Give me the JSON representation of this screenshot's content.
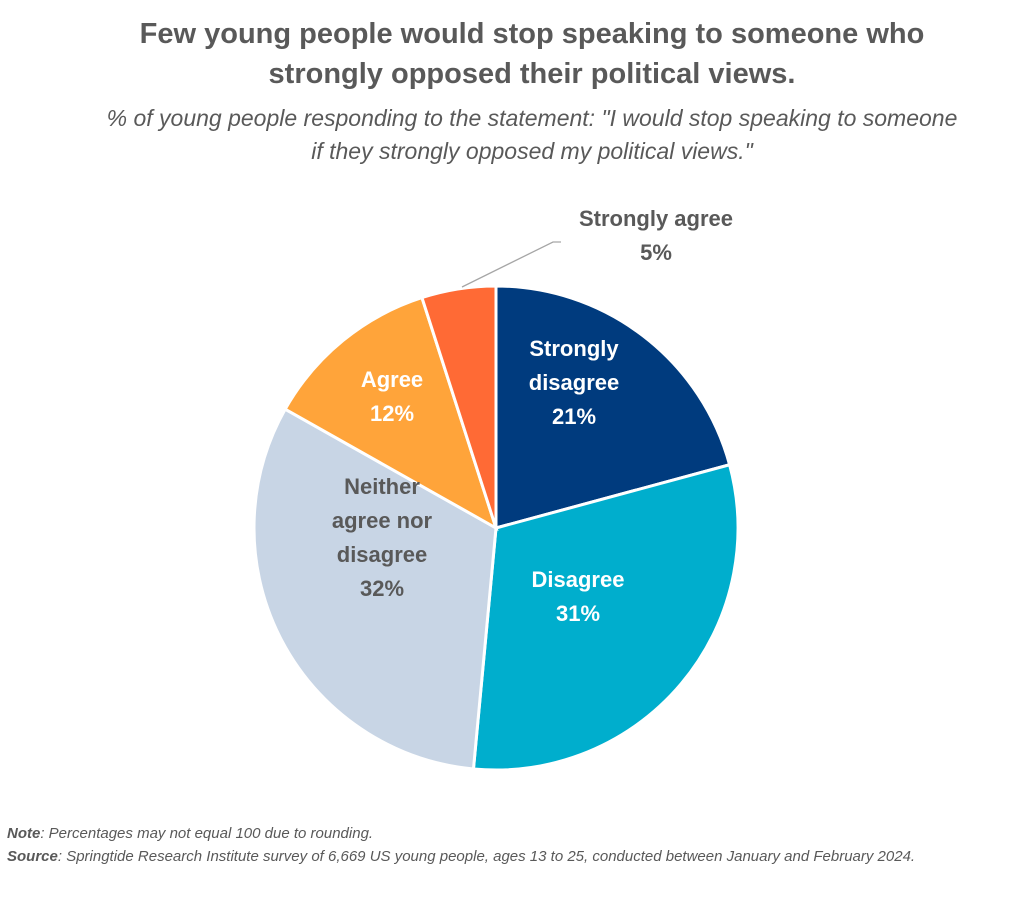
{
  "chart_data": {
    "type": "pie",
    "title": "Few young people would stop speaking to someone who strongly opposed their political views.",
    "subtitle": "% of young people responding to the statement: \"I would stop speaking to someone if they strongly opposed my political views.\"",
    "start": "top, clockwise",
    "slices": [
      {
        "name": "Strongly disagree",
        "label_lines": [
          "Strongly",
          "disagree",
          "21%"
        ],
        "value": 21,
        "color": "#003B7E",
        "text_color": "#FFFFFF"
      },
      {
        "name": "Disagree",
        "label_lines": [
          "Disagree",
          "31%"
        ],
        "value": 31,
        "color": "#00AECD",
        "text_color": "#FFFFFF"
      },
      {
        "name": "Neither agree nor disagree",
        "label_lines": [
          "Neither",
          "agree nor",
          "disagree",
          "32%"
        ],
        "value": 32,
        "color": "#C8D5E5",
        "text_color": "#595959"
      },
      {
        "name": "Agree",
        "label_lines": [
          "Agree",
          "12%"
        ],
        "value": 12,
        "color": "#FFA43A",
        "text_color": "#FFFFFF"
      },
      {
        "name": "Strongly agree",
        "label_lines": [
          "Strongly agree",
          "5%"
        ],
        "value": 5,
        "color": "#FF6A35",
        "text_color": "#595959"
      }
    ]
  },
  "notes": {
    "note_label": "Note",
    "note_text": ": Percentages may not equal 100 due to rounding.",
    "source_label": "Source",
    "source_text": ": Springtide Research Institute survey of 6,669 US young people, ages 13 to 25, conducted between January and February 2024."
  }
}
